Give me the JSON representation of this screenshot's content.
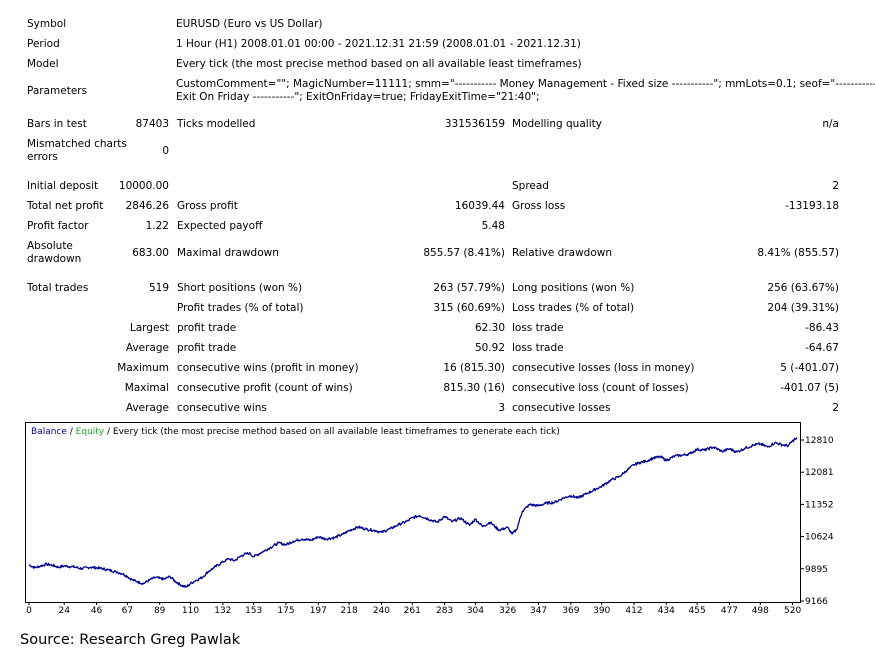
{
  "report": {
    "symbol_label": "Symbol",
    "symbol_value": "EURUSD (Euro vs US Dollar)",
    "period_label": "Period",
    "period_value": "1 Hour (H1) 2008.01.01 00:00 - 2021.12.31 21:59 (2008.01.01 - 2021.12.31)",
    "model_label": "Model",
    "model_value": "Every tick (the most precise method based on all available least timeframes)",
    "parameters_label": "Parameters",
    "parameters_line1": "CustomComment=\"\"; MagicNumber=11111; smm=\"----------- Money Management - Fixed size -----------\"; mmLots=0.1; seof=\"-----------",
    "parameters_line2": "Exit On Friday -----------\"; ExitOnFriday=true; FridayExitTime=\"21:40\";",
    "bars_label": "Bars in test",
    "bars_value": "87403",
    "ticks_label": "Ticks modelled",
    "ticks_value": "331536159",
    "quality_label": "Modelling quality",
    "quality_value": "n/a",
    "mismatch_label_1": "Mismatched charts",
    "mismatch_label_2": "errors",
    "mismatch_value": "0",
    "initial_deposit_label": "Initial deposit",
    "initial_deposit_value": "10000.00",
    "spread_label": "Spread",
    "spread_value": "2",
    "net_profit_label": "Total net profit",
    "net_profit_value": "2846.26",
    "gross_profit_label": "Gross profit",
    "gross_profit_value": "16039.44",
    "gross_loss_label": "Gross loss",
    "gross_loss_value": "-13193.18",
    "profit_factor_label": "Profit factor",
    "profit_factor_value": "1.22",
    "expected_payoff_label": "Expected payoff",
    "expected_payoff_value": "5.48",
    "abs_dd_label_1": "Absolute",
    "abs_dd_label_2": "drawdown",
    "abs_dd_value": "683.00",
    "max_dd_label": "Maximal drawdown",
    "max_dd_value": "855.57 (8.41%)",
    "rel_dd_label": "Relative drawdown",
    "rel_dd_value": "8.41% (855.57)",
    "total_trades_label": "Total trades",
    "total_trades_value": "519",
    "short_label": "Short positions (won %)",
    "short_value": "263 (57.79%)",
    "long_label": "Long positions (won %)",
    "long_value": "256 (63.67%)",
    "profit_trades_label": "Profit trades (% of total)",
    "profit_trades_value": "315 (60.69%)",
    "loss_trades_label": "Loss trades (% of total)",
    "loss_trades_value": "204 (39.31%)",
    "largest_label": "Largest",
    "largest_profit_label": "profit trade",
    "largest_profit_value": "62.30",
    "largest_loss_label": "loss trade",
    "largest_loss_value": "-86.43",
    "average_label": "Average",
    "average_profit_label": "profit trade",
    "average_profit_value": "50.92",
    "average_loss_label": "loss trade",
    "average_loss_value": "-64.67",
    "maximum_label": "Maximum",
    "max_cons_wins_label": "consecutive wins (profit in money)",
    "max_cons_wins_value": "16 (815.30)",
    "max_cons_losses_label": "consecutive losses (loss in money)",
    "max_cons_losses_value": "5 (-401.07)",
    "maximal_label": "Maximal",
    "maximal_cons_profit_label": "consecutive profit (count of wins)",
    "maximal_cons_profit_value": "815.30 (16)",
    "maximal_cons_loss_label": "consecutive loss (count of losses)",
    "maximal_cons_loss_value": "-401.07 (5)",
    "average2_label": "Average",
    "avg_cons_wins_label": "consecutive wins",
    "avg_cons_wins_value": "3",
    "avg_cons_losses_label": "consecutive losses",
    "avg_cons_losses_value": "2"
  },
  "chart_data": {
    "type": "line",
    "legend_balance": "Balance",
    "legend_separator_1": " / ",
    "legend_equity": "Equity",
    "legend_rest": " / Every tick (the most precise method based on all available least timeframes to generate each tick)",
    "series": [
      {
        "name": "Balance",
        "color": "#00008b",
        "x": [
          0,
          4,
          8,
          12,
          16,
          20,
          24,
          30,
          36,
          42,
          48,
          54,
          60,
          64,
          67,
          70,
          74,
          78,
          82,
          86,
          89,
          92,
          96,
          100,
          104,
          107,
          110,
          114,
          118,
          122,
          126,
          132,
          136,
          140,
          145,
          150,
          153,
          158,
          164,
          170,
          175,
          180,
          186,
          192,
          197,
          202,
          208,
          214,
          218,
          224,
          230,
          236,
          240,
          246,
          252,
          258,
          261,
          266,
          272,
          278,
          283,
          288,
          294,
          300,
          304,
          309,
          314,
          320,
          326,
          329,
          332,
          336,
          341,
          347,
          352,
          358,
          364,
          369,
          374,
          380,
          386,
          390,
          396,
          402,
          407,
          412,
          416,
          420,
          425,
          430,
          434,
          440,
          446,
          450,
          455,
          460,
          466,
          472,
          477,
          482,
          488,
          494,
          498,
          503,
          508,
          513,
          517,
          521,
          523
        ],
        "y": [
          9985,
          9920,
          9960,
          10000,
          9975,
          9930,
          9960,
          9940,
          9900,
          9930,
          9910,
          9870,
          9820,
          9780,
          9720,
          9650,
          9600,
          9560,
          9640,
          9700,
          9680,
          9660,
          9720,
          9600,
          9520,
          9480,
          9560,
          9640,
          9700,
          9830,
          9920,
          10050,
          10120,
          10080,
          10200,
          10250,
          10170,
          10260,
          10370,
          10480,
          10440,
          10520,
          10570,
          10540,
          10620,
          10570,
          10600,
          10680,
          10760,
          10840,
          10790,
          10760,
          10720,
          10800,
          10900,
          10980,
          11050,
          11100,
          11020,
          10950,
          11080,
          10960,
          11040,
          10880,
          11020,
          10850,
          10950,
          10770,
          10830,
          10680,
          10780,
          11200,
          11350,
          11320,
          11380,
          11400,
          11500,
          11550,
          11500,
          11600,
          11700,
          11760,
          11900,
          11980,
          12120,
          12250,
          12300,
          12330,
          12400,
          12430,
          12350,
          12450,
          12470,
          12500,
          12600,
          12580,
          12650,
          12550,
          12610,
          12540,
          12630,
          12700,
          12720,
          12650,
          12750,
          12700,
          12680,
          12820,
          12840
        ]
      }
    ],
    "xlim": [
      0,
      523
    ],
    "ylim": [
      9166,
      12810
    ],
    "x_ticks": [
      0,
      24,
      46,
      67,
      89,
      110,
      132,
      153,
      175,
      197,
      218,
      240,
      261,
      283,
      304,
      326,
      347,
      369,
      390,
      412,
      434,
      455,
      477,
      498,
      520
    ],
    "y_ticks": [
      "12810",
      "12081",
      "11352",
      "10624",
      "9895",
      "9166"
    ],
    "y_tick_values": [
      12810,
      12081,
      11352,
      10624,
      9895,
      9166
    ],
    "grid": false
  },
  "source": "Source: Research Greg Pawlak"
}
